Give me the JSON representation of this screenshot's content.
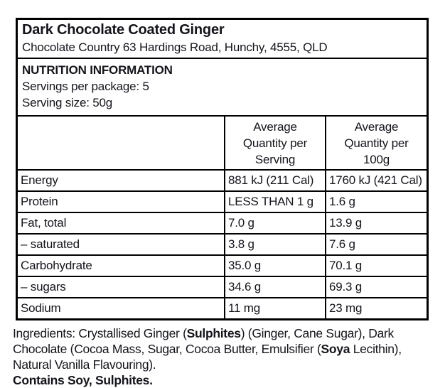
{
  "header": {
    "title": "Dark Chocolate Coated Ginger",
    "address": "Chocolate Country 63 Hardings Road, Hunchy, 4555, QLD"
  },
  "info": {
    "heading": "NUTRITION INFORMATION",
    "servings_per_package": "Servings per package: 5",
    "serving_size": "Serving size: 50g"
  },
  "table": {
    "header": {
      "per_serving": "Average Quantity per Serving",
      "per_100g": "Average Quantity per 100g"
    },
    "rows": [
      {
        "nutrient": "Energy",
        "per_serving": "881 kJ (211 Cal)",
        "per_100g": "1760 kJ (421 Cal)"
      },
      {
        "nutrient": "Protein",
        "per_serving": "LESS THAN 1 g",
        "per_100g": "1.6 g"
      },
      {
        "nutrient": "Fat, total",
        "per_serving": "7.0 g",
        "per_100g": "13.9 g"
      },
      {
        "nutrient": "– saturated",
        "per_serving": "3.8 g",
        "per_100g": "7.6 g"
      },
      {
        "nutrient": "Carbohydrate",
        "per_serving": "35.0 g",
        "per_100g": "70.1 g"
      },
      {
        "nutrient": "– sugars",
        "per_serving": "34.6 g",
        "per_100g": "69.3 g"
      },
      {
        "nutrient": "Sodium",
        "per_serving": "11 mg",
        "per_100g": "23 mg"
      }
    ]
  },
  "ingredients": {
    "segments": [
      {
        "text": "Ingredients: Crystallised Ginger (",
        "bold": false
      },
      {
        "text": "Sulphites",
        "bold": true
      },
      {
        "text": ") (Ginger, Cane Sugar), Dark Chocolate (Cocoa Mass, Sugar, Cocoa Butter, Emulsifier (",
        "bold": false
      },
      {
        "text": "Soya",
        "bold": true
      },
      {
        "text": " Lecithin), Natural Vanilla Flavouring).",
        "bold": false
      }
    ]
  },
  "allergen": {
    "contains": "Contains Soy, Sulphites."
  },
  "colors": {
    "background": "#ffffff",
    "border": "#000000",
    "text": "#14151c"
  }
}
